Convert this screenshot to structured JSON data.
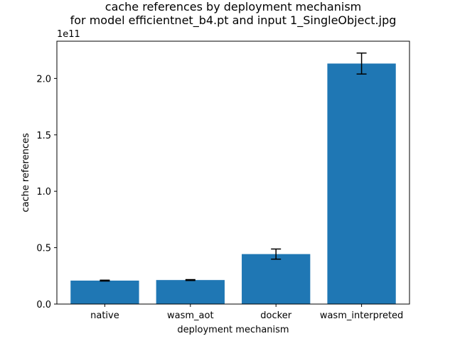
{
  "chart_data": {
    "type": "bar",
    "title_line1": "cache references by deployment mechanism",
    "title_line2": "for model efficientnet_b4.pt and input 1_SingleObject.jpg",
    "xlabel": "deployment mechanism",
    "ylabel": "cache references",
    "offset_text": "1e11",
    "categories": [
      "native",
      "wasm_aot",
      "docker",
      "wasm_interpreted"
    ],
    "values": [
      20800000000.0,
      21300000000.0,
      44300000000.0,
      213200000000.0
    ],
    "errors": [
      400000000.0,
      400000000.0,
      4500000000.0,
      9300000000.0
    ],
    "ylim": [
      0,
      233000000000.0
    ],
    "yticks": [
      0,
      50000000000.0,
      100000000000.0,
      150000000000.0,
      200000000000.0
    ],
    "ytick_labels": [
      "0.0",
      "0.5",
      "1.0",
      "1.5",
      "2.0"
    ],
    "bar_color": "#1f77b4",
    "error_color": "#000000",
    "grid": false,
    "legend": false
  }
}
